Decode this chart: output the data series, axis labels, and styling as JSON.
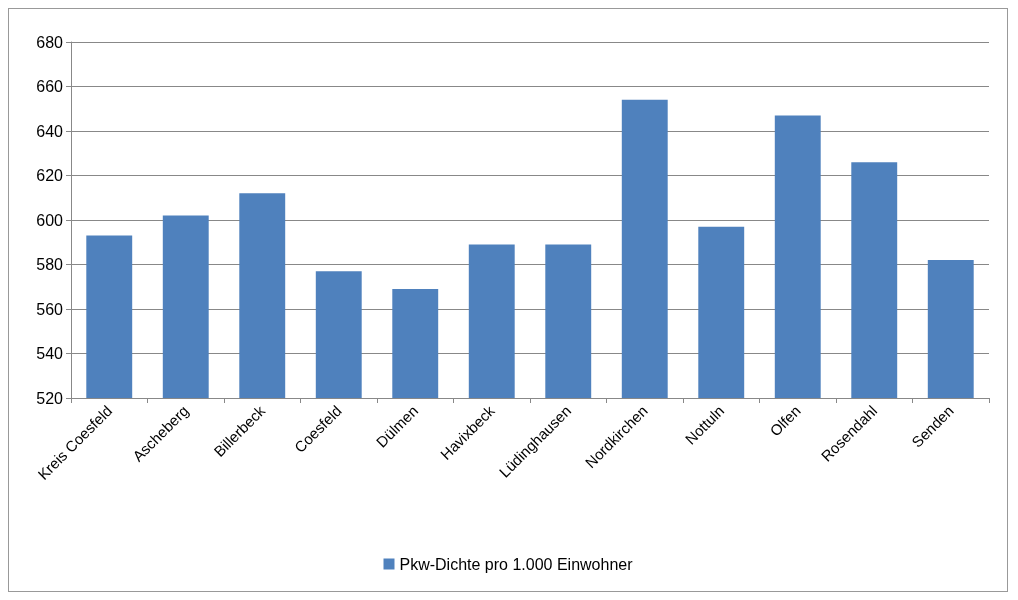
{
  "chart_data": {
    "type": "bar",
    "categories": [
      "Kreis Coesfeld",
      "Ascheberg",
      "Billerbeck",
      "Coesfeld",
      "Dülmen",
      "Havixbeck",
      "Lüdinghausen",
      "Nordkirchen",
      "Nottuln",
      "Olfen",
      "Rosendahl",
      "Senden"
    ],
    "series": [
      {
        "name": "Pkw-Dichte pro 1.000 Einwohner",
        "color": "#4f81bd",
        "values": [
          593,
          602,
          612,
          577,
          569,
          589,
          589,
          654,
          597,
          647,
          626,
          582
        ]
      }
    ],
    "ylim": [
      520,
      680
    ],
    "yticks": [
      520,
      540,
      560,
      580,
      600,
      620,
      640,
      660,
      680
    ],
    "grid": "y",
    "legend": "bottom"
  }
}
